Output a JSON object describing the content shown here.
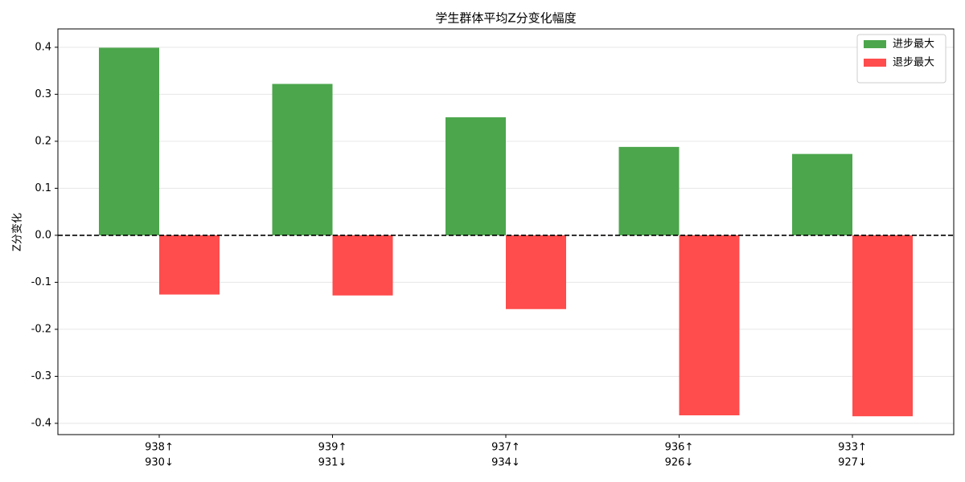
{
  "chart_data": {
    "type": "bar",
    "title": "学生群体平均Z分变化幅度",
    "ylabel": "Z分变化",
    "categories": [
      [
        "938↑",
        "930↓"
      ],
      [
        "939↑",
        "931↓"
      ],
      [
        "937↑",
        "934↓"
      ],
      [
        "936↑",
        "926↓"
      ],
      [
        "933↑",
        "927↓"
      ]
    ],
    "series": [
      {
        "name": "进步最大",
        "color": "#4ca64c",
        "values": [
          0.399,
          0.322,
          0.251,
          0.188,
          0.173
        ]
      },
      {
        "name": "退步最大",
        "color": "#ff4c4c",
        "values": [
          -0.126,
          -0.128,
          -0.157,
          -0.383,
          -0.385
        ]
      }
    ],
    "ylim": [
      -0.424,
      0.439
    ],
    "yticks": [
      {
        "value": -0.4,
        "label": "-0.4"
      },
      {
        "value": -0.3,
        "label": "-0.3"
      },
      {
        "value": -0.2,
        "label": "-0.2"
      },
      {
        "value": -0.1,
        "label": "-0.1"
      },
      {
        "value": 0,
        "label": "0.0"
      },
      {
        "value": 0.1,
        "label": "0.1"
      },
      {
        "value": 0.2,
        "label": "0.2"
      },
      {
        "value": 0.3,
        "label": "0.3"
      },
      {
        "value": 0.4,
        "label": "0.4"
      }
    ],
    "hline": 0,
    "grid": true,
    "legend": "upper right"
  }
}
